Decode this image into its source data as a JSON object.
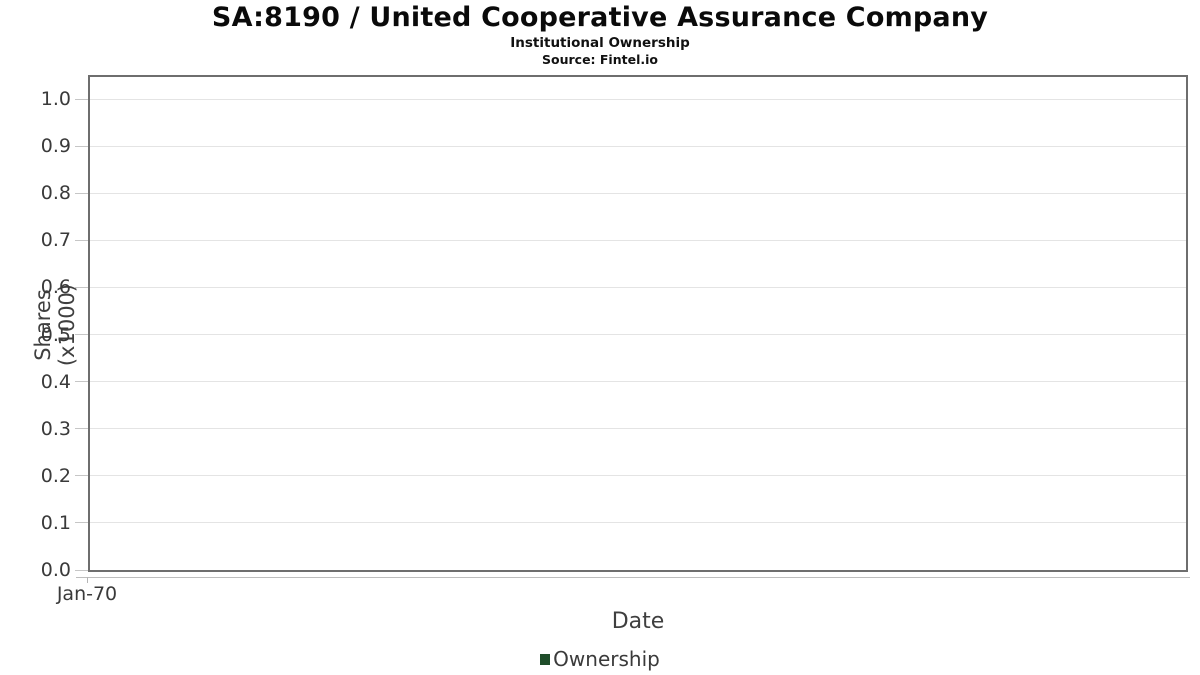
{
  "header": {
    "title": "SA:8190 / United Cooperative Assurance Company",
    "subtitle": "Institutional Ownership",
    "source": "Source: Fintel.io"
  },
  "chart_data": {
    "type": "line",
    "title": "SA:8190 / United Cooperative Assurance Company",
    "subtitle": "Institutional Ownership",
    "source_note": "Source: Fintel.io",
    "xlabel": "Date",
    "ylabel": "Shares (x1000)",
    "x_ticks": [
      "Jan-70"
    ],
    "y_ticks": [
      "0.0",
      "0.1",
      "0.2",
      "0.3",
      "0.4",
      "0.5",
      "0.6",
      "0.7",
      "0.8",
      "0.9",
      "1.0"
    ],
    "ylim": [
      0,
      1.05
    ],
    "grid": "horizontal",
    "legend_position": "bottom",
    "series": [
      {
        "name": "Ownership",
        "color": "#1f4d2a",
        "x": [],
        "values": []
      }
    ]
  },
  "legend": {
    "items": [
      {
        "label": "Ownership",
        "color": "#1f4d2a"
      }
    ]
  },
  "colors": {
    "plot_border": "#6e6e6e",
    "gridline": "#e4e4e4",
    "tick": "#c6c6c6",
    "axis_line": "#bdbdbd",
    "text": "#3a3a3a",
    "series_green": "#1f4d2a"
  }
}
